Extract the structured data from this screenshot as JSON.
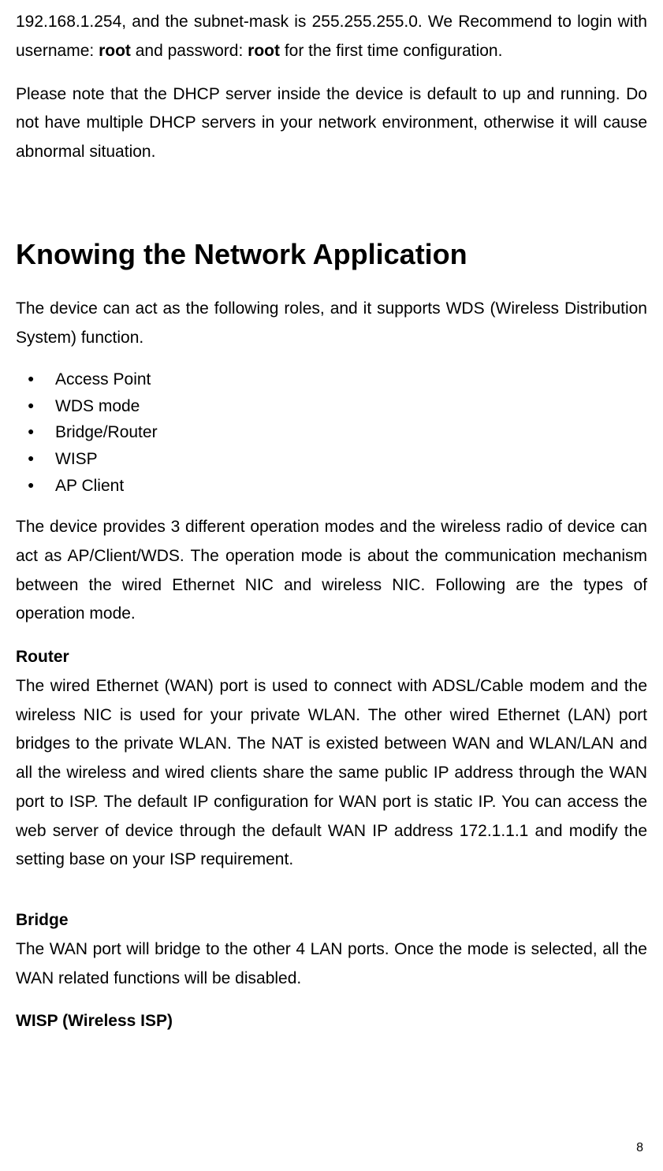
{
  "intro": {
    "para1_part1": "192.168.1.254, and the subnet-mask is 255.255.255.0. We Recommend to login with username: ",
    "para1_bold1": "root",
    "para1_part2": " and password: ",
    "para1_bold2": "root",
    "para1_part3": " for the first time configuration.",
    "para2": "Please note that the DHCP server inside the device is default to up and running. Do not have multiple DHCP servers in your network environment, otherwise it will cause abnormal situation."
  },
  "heading": "Knowing the Network Application",
  "para3": "The device can act as the following roles, and it supports WDS (Wireless Distribution System) function.",
  "bullets": [
    "Access Point",
    "WDS mode",
    "Bridge/Router",
    "WISP",
    "AP Client"
  ],
  "para4": "The device provides 3 different operation modes and the wireless radio of device can act as AP/Client/WDS. The operation mode is about the communication mechanism between the wired Ethernet NIC and wireless NIC. Following are the types of operation mode.",
  "router": {
    "title": "Router",
    "text": "The wired Ethernet (WAN) port is used to connect with ADSL/Cable modem and the wireless NIC is used for your private WLAN. The other wired Ethernet (LAN) port bridges to the private WLAN. The NAT is existed between WAN and WLAN/LAN and all the wireless and wired clients share the same public IP address through the WAN port to ISP. The default IP configuration for WAN port is static IP. You can access the web server of device through the default WAN IP address 172.1.1.1 and modify the setting base on your ISP requirement."
  },
  "bridge": {
    "title": "Bridge",
    "text": "The WAN port will bridge to the other 4 LAN ports. Once the mode is selected, all the WAN related functions will be disabled."
  },
  "wisp": {
    "title": "WISP (Wireless ISP)"
  },
  "pageNumber": "8"
}
